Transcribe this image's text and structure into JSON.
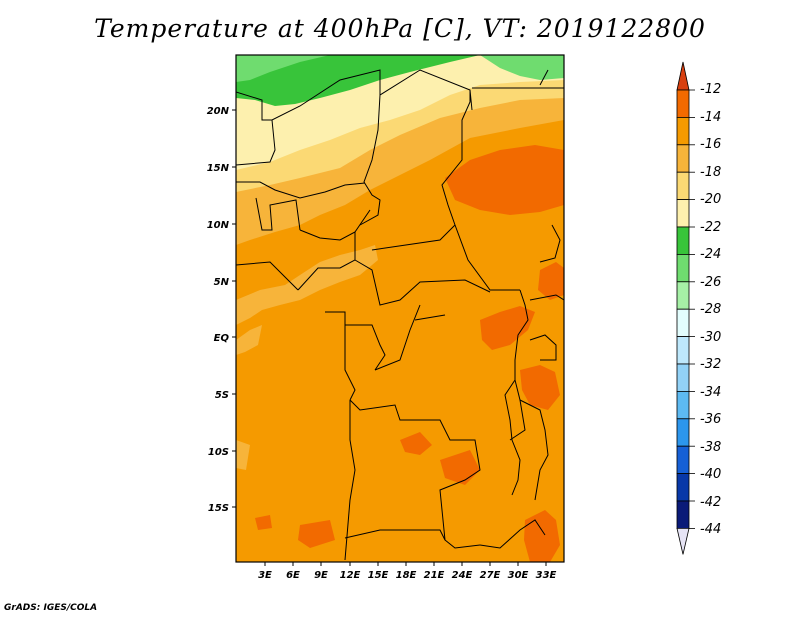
{
  "title": "Temperature at 400hPa [C], VT: 2019122800",
  "credit": "GrADS: IGES/COLA",
  "map": {
    "lon_ticks": [
      "3E",
      "6E",
      "9E",
      "12E",
      "15E",
      "18E",
      "21E",
      "24E",
      "27E",
      "30E",
      "33E"
    ],
    "lat_ticks": [
      "20N",
      "15N",
      "10N",
      "5N",
      "EQ",
      "5S",
      "10S",
      "15S"
    ],
    "extent": {
      "lon": [
        0,
        35
      ],
      "lat": [
        -20,
        24.5
      ]
    }
  },
  "colorbar": {
    "labels": [
      "-12",
      "-14",
      "-16",
      "-18",
      "-20",
      "-22",
      "-24",
      "-26",
      "-28",
      "-30",
      "-32",
      "-34",
      "-36",
      "-38",
      "-40",
      "-42",
      "-44"
    ],
    "colors": [
      "#d84010",
      "#f26a00",
      "#f59a00",
      "#f7b43a",
      "#fbd974",
      "#fdf0ae",
      "#38c43a",
      "#6fdc6f",
      "#a6f0a6",
      "#e3fdfd",
      "#bee8fc",
      "#92d2f7",
      "#5dbaf2",
      "#2c96ed",
      "#1660d6",
      "#0838a8",
      "#0a1a78",
      "#e6e4f5"
    ]
  },
  "legend": {
    "temperature_bands": {
      "-12 to -14": "#f26a00",
      "-14 to -16": "#f59a00",
      "-16 to -18": "#f7b43a",
      "-18 to -20": "#fbd974",
      "-20 to -22": "#fdf0ae",
      "-22 to -24": "#38c43a",
      "-24 to -26": "#6fdc6f"
    }
  }
}
